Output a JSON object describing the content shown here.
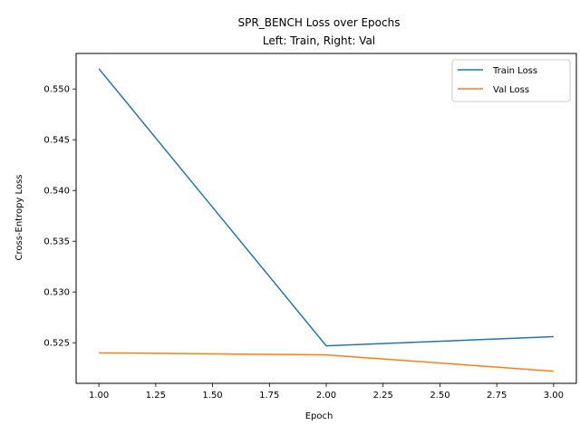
{
  "chart_data": {
    "type": "line",
    "title": "SPR_BENCH Loss over Epochs",
    "subtitle": "Left: Train, Right: Val",
    "xlabel": "Epoch",
    "ylabel": "Cross-Entropy Loss",
    "x": [
      1,
      2,
      3
    ],
    "xlim": [
      0.9,
      3.1
    ],
    "ylim": [
      0.521,
      0.5535
    ],
    "xticks": [
      "1.00",
      "1.25",
      "1.50",
      "1.75",
      "2.00",
      "2.25",
      "2.50",
      "2.75",
      "3.00"
    ],
    "xtick_values": [
      1.0,
      1.25,
      1.5,
      1.75,
      2.0,
      2.25,
      2.5,
      2.75,
      3.0
    ],
    "yticks": [
      "0.525",
      "0.530",
      "0.535",
      "0.540",
      "0.545",
      "0.550"
    ],
    "ytick_values": [
      0.525,
      0.53,
      0.535,
      0.54,
      0.545,
      0.55
    ],
    "grid": false,
    "legend_position": "top-right",
    "series": [
      {
        "name": "Train Loss",
        "values": [
          0.552,
          0.5247,
          0.5256
        ],
        "color": "#1f77b4"
      },
      {
        "name": "Val Loss",
        "values": [
          0.524,
          0.5238,
          0.5222
        ],
        "color": "#ff7f0e"
      }
    ]
  }
}
